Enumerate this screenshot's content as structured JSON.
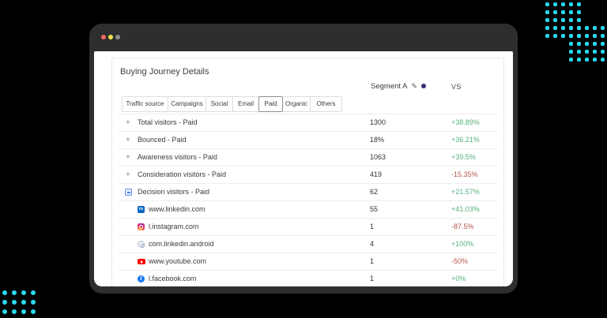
{
  "colors": {
    "accent": "#2bd9ee",
    "positive": "#57b17e",
    "negative": "#b4544d",
    "linkedin": "#0a66c2",
    "facebook": "#1877f2",
    "youtube": "#fe0000",
    "segment_dot": "#343078"
  },
  "window": {
    "traffic_lights": [
      {
        "name": "close",
        "color": "#ee6a5f"
      },
      {
        "name": "minimize",
        "color": "#f5e14d"
      },
      {
        "name": "zoom",
        "color": "#8d8d8d"
      }
    ]
  },
  "card": {
    "title": "Buying Journey Details",
    "segment_header": {
      "segment_name": "Segment A",
      "edit_icon": "✎",
      "vs_label": "VS"
    },
    "tabs": [
      {
        "label": "Traffic source",
        "selected": false
      },
      {
        "label": "Campaigns",
        "selected": false
      },
      {
        "label": "Social",
        "selected": false
      },
      {
        "label": "Email",
        "selected": false
      },
      {
        "label": "Paid",
        "selected": true
      },
      {
        "label": "Organic",
        "selected": false
      },
      {
        "label": "Others",
        "selected": false
      }
    ],
    "table": {
      "rows": [
        {
          "type": "parent",
          "expand": "plus",
          "label": "Total visitors - Paid",
          "value": "1300",
          "change": "+38.89%",
          "direction": "up"
        },
        {
          "type": "parent",
          "expand": "plus",
          "label": "Bounced - Paid",
          "value": "18%",
          "change": "+36.21%",
          "direction": "up"
        },
        {
          "type": "parent",
          "expand": "plus",
          "label": "Awareness visitors - Paid",
          "value": "1063",
          "change": "+39.5%",
          "direction": "up"
        },
        {
          "type": "parent",
          "expand": "plus",
          "label": "Consideration visitors - Paid",
          "value": "419",
          "change": "-15.35%",
          "direction": "down"
        },
        {
          "type": "parent",
          "expand": "minus",
          "label": "Decision visitors - Paid",
          "value": "62",
          "change": "+21.57%",
          "direction": "up"
        },
        {
          "type": "child",
          "icon": "linkedin",
          "label": "www.linkedin.com",
          "value": "55",
          "change": "+41.03%",
          "direction": "up"
        },
        {
          "type": "child",
          "icon": "instagram",
          "label": "l.instagram.com",
          "value": "1",
          "change": "-87.5%",
          "direction": "down"
        },
        {
          "type": "child",
          "icon": "linkedin-android",
          "label": "com.linkedin.android",
          "value": "4",
          "change": "+100%",
          "direction": "up"
        },
        {
          "type": "child",
          "icon": "youtube",
          "label": "www.youtube.com",
          "value": "1",
          "change": "-50%",
          "direction": "down"
        },
        {
          "type": "child",
          "icon": "facebook",
          "label": "l.facebook.com",
          "value": "1",
          "change": "+0%",
          "direction": "up"
        }
      ]
    }
  },
  "icons": {
    "plus": "+",
    "linkedin_glyph": "in",
    "facebook_glyph": "f"
  }
}
